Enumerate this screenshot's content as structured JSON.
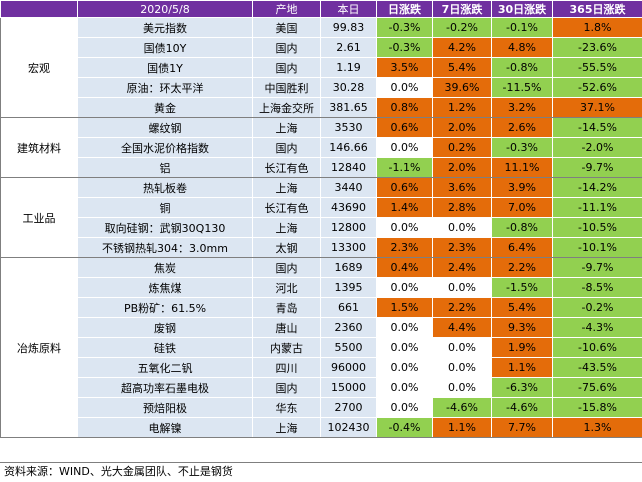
{
  "header": {
    "date": "2020/5/8",
    "col_location": "产地",
    "col_price": "本日",
    "col_d1": "日涨跌",
    "col_d7": "7日涨跌",
    "col_d30": "30日涨跌",
    "col_d365": "365日涨跌"
  },
  "colors": {
    "header_bg": "#7030a0",
    "up": "#e46c0a",
    "down": "#92d050",
    "cell_bg": "#dce6f2"
  },
  "groups": [
    {
      "name": "宏观",
      "rows": [
        {
          "name": "美元指数",
          "loc": "美国",
          "price": "99.83",
          "d1": "-0.3%",
          "d7": "-0.2%",
          "d30": "-0.1%",
          "d365": "1.8%"
        },
        {
          "name": "国债10Y",
          "loc": "国内",
          "price": "2.61",
          "d1": "-0.3%",
          "d7": "4.2%",
          "d30": "4.8%",
          "d365": "-23.6%"
        },
        {
          "name": "国债1Y",
          "loc": "国内",
          "price": "1.19",
          "d1": "3.5%",
          "d7": "5.4%",
          "d30": "-0.8%",
          "d365": "-55.5%"
        },
        {
          "name": "原油：环太平洋",
          "loc": "中国胜利",
          "price": "30.28",
          "d1": "0.0%",
          "d7": "39.6%",
          "d30": "-11.5%",
          "d365": "-52.6%"
        },
        {
          "name": "黄金",
          "loc": "上海金交所",
          "price": "381.65",
          "d1": "0.8%",
          "d7": "1.2%",
          "d30": "3.2%",
          "d365": "37.1%"
        }
      ]
    },
    {
      "name": "建筑材料",
      "rows": [
        {
          "name": "螺纹钢",
          "loc": "上海",
          "price": "3530",
          "d1": "0.6%",
          "d7": "2.0%",
          "d30": "2.6%",
          "d365": "-14.5%"
        },
        {
          "name": "全国水泥价格指数",
          "loc": "国内",
          "price": "146.66",
          "d1": "0.0%",
          "d7": "0.2%",
          "d30": "-0.3%",
          "d365": "-2.0%"
        },
        {
          "name": "铝",
          "loc": "长江有色",
          "price": "12840",
          "d1": "-1.1%",
          "d7": "2.0%",
          "d30": "11.1%",
          "d365": "-9.7%"
        }
      ]
    },
    {
      "name": "工业品",
      "rows": [
        {
          "name": "热轧板卷",
          "loc": "上海",
          "price": "3440",
          "d1": "0.6%",
          "d7": "3.6%",
          "d30": "3.9%",
          "d365": "-14.2%"
        },
        {
          "name": "铜",
          "loc": "长江有色",
          "price": "43690",
          "d1": "1.4%",
          "d7": "2.8%",
          "d30": "7.0%",
          "d365": "-11.1%"
        },
        {
          "name": "取向硅钢：武钢30Q130",
          "loc": "上海",
          "price": "12800",
          "d1": "0.0%",
          "d7": "0.0%",
          "d30": "-0.8%",
          "d365": "-10.5%"
        },
        {
          "name": "不锈钢热轧304：3.0mm",
          "loc": "太钢",
          "price": "13300",
          "d1": "2.3%",
          "d7": "2.3%",
          "d30": "6.4%",
          "d365": "-10.1%"
        }
      ]
    },
    {
      "name": "冶炼原料",
      "rows": [
        {
          "name": "焦炭",
          "loc": "国内",
          "price": "1689",
          "d1": "0.4%",
          "d7": "2.4%",
          "d30": "2.2%",
          "d365": "-9.7%"
        },
        {
          "name": "炼焦煤",
          "loc": "河北",
          "price": "1395",
          "d1": "0.0%",
          "d7": "0.0%",
          "d30": "-1.5%",
          "d365": "-8.5%"
        },
        {
          "name": "PB粉矿：61.5%",
          "loc": "青岛",
          "price": "661",
          "d1": "1.5%",
          "d7": "2.2%",
          "d30": "5.4%",
          "d365": "-0.2%"
        },
        {
          "name": "废钢",
          "loc": "唐山",
          "price": "2360",
          "d1": "0.0%",
          "d7": "4.4%",
          "d30": "9.3%",
          "d365": "-4.3%"
        },
        {
          "name": "硅铁",
          "loc": "内蒙古",
          "price": "5500",
          "d1": "0.0%",
          "d7": "0.0%",
          "d30": "1.9%",
          "d365": "-10.6%"
        },
        {
          "name": "五氧化二钒",
          "loc": "四川",
          "price": "96000",
          "d1": "0.0%",
          "d7": "0.0%",
          "d30": "1.1%",
          "d365": "-43.5%"
        },
        {
          "name": "超高功率石墨电极",
          "loc": "国内",
          "price": "15000",
          "d1": "0.0%",
          "d7": "0.0%",
          "d30": "-6.3%",
          "d365": "-75.6%"
        },
        {
          "name": "预焙阳极",
          "loc": "华东",
          "price": "2700",
          "d1": "0.0%",
          "d7": "-4.6%",
          "d30": "-4.6%",
          "d365": "-15.8%"
        },
        {
          "name": "电解镍",
          "loc": "上海",
          "price": "102430",
          "d1": "-0.4%",
          "d7": "1.1%",
          "d30": "7.7%",
          "d365": "1.3%"
        }
      ]
    }
  ],
  "footer": "资料来源：WIND、光大金属团队、不止是钢货"
}
